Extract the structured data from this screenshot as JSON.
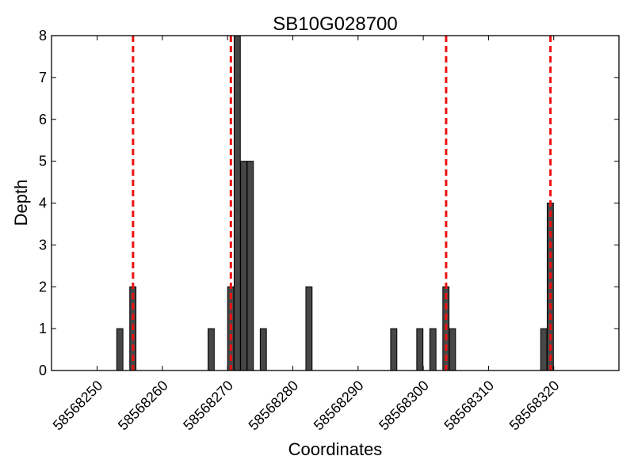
{
  "chart_data": {
    "type": "bar",
    "title": "SB10G028700",
    "xlabel": "Coordinates",
    "ylabel": "Depth",
    "xlim": [
      58568243,
      58568330
    ],
    "ylim": [
      0,
      8
    ],
    "xticks": [
      58568250,
      58568260,
      58568270,
      58568280,
      58568290,
      58568300,
      58568310,
      58568320
    ],
    "yticks": [
      0,
      1,
      2,
      3,
      4,
      5,
      6,
      7,
      8
    ],
    "bars": [
      {
        "x": 58568253,
        "value": 1
      },
      {
        "x": 58568255,
        "value": 2
      },
      {
        "x": 58568267,
        "value": 1
      },
      {
        "x": 58568270,
        "value": 2
      },
      {
        "x": 58568271,
        "value": 8
      },
      {
        "x": 58568272,
        "value": 5
      },
      {
        "x": 58568273,
        "value": 5
      },
      {
        "x": 58568275,
        "value": 1
      },
      {
        "x": 58568282,
        "value": 2
      },
      {
        "x": 58568295,
        "value": 1
      },
      {
        "x": 58568299,
        "value": 1
      },
      {
        "x": 58568301,
        "value": 1
      },
      {
        "x": 58568303,
        "value": 2
      },
      {
        "x": 58568304,
        "value": 1
      },
      {
        "x": 58568318,
        "value": 1
      },
      {
        "x": 58568319,
        "value": 4
      }
    ],
    "vlines": [
      58568255.5,
      58568270.5,
      58568303.5,
      58568319.5
    ],
    "bar_color": "#474747",
    "vline_color": "#ee1111"
  }
}
